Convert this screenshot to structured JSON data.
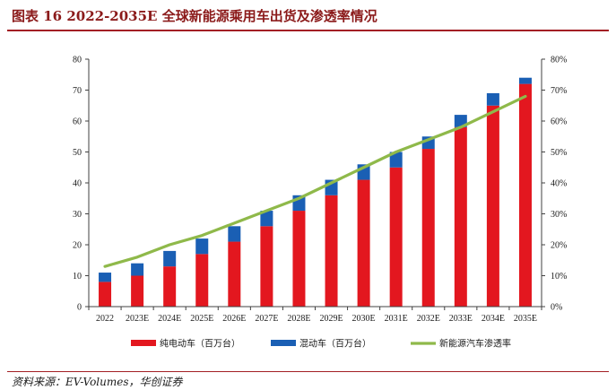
{
  "header": {
    "title": "图表 16   2022-2035E 全球新能源乘用车出货及渗透率情况"
  },
  "source": "资料来源：EV-Volumes，华创证券",
  "colors": {
    "bev": "#e3171f",
    "phev": "#1a5fb4",
    "penetration": "#8fb94a",
    "axis": "#404040",
    "title": "#8b1a1a"
  },
  "chart_data": {
    "type": "bar",
    "stacked": true,
    "categories": [
      "2022",
      "2023E",
      "2024E",
      "2025E",
      "2026E",
      "2027E",
      "2028E",
      "2029E",
      "2030E",
      "2031E",
      "2032E",
      "2033E",
      "2034E",
      "2035E"
    ],
    "series": [
      {
        "name": "纯电动车（百万台）",
        "axis": "left",
        "type": "bar",
        "values": [
          8,
          10,
          13,
          17,
          21,
          26,
          31,
          36,
          41,
          45,
          51,
          58,
          65,
          72
        ]
      },
      {
        "name": "混动车（百万台）",
        "axis": "left",
        "type": "bar",
        "values": [
          3,
          4,
          5,
          5,
          5,
          5,
          5,
          5,
          5,
          5,
          4,
          4,
          4,
          2
        ]
      },
      {
        "name": "新能源汽车渗透率",
        "axis": "right",
        "type": "line",
        "values": [
          13,
          16,
          20,
          23,
          27,
          31,
          35,
          40,
          45,
          50,
          54,
          58,
          63,
          68
        ]
      }
    ],
    "left_axis": {
      "min": 0,
      "max": 80,
      "ticks": [
        0,
        10,
        20,
        30,
        40,
        50,
        60,
        70,
        80
      ]
    },
    "right_axis": {
      "min": 0,
      "max": 80,
      "unit": "%",
      "ticks": [
        "0%",
        "10%",
        "20%",
        "30%",
        "40%",
        "50%",
        "60%",
        "70%",
        "80%"
      ]
    },
    "legend_position": "bottom",
    "grid": false
  }
}
